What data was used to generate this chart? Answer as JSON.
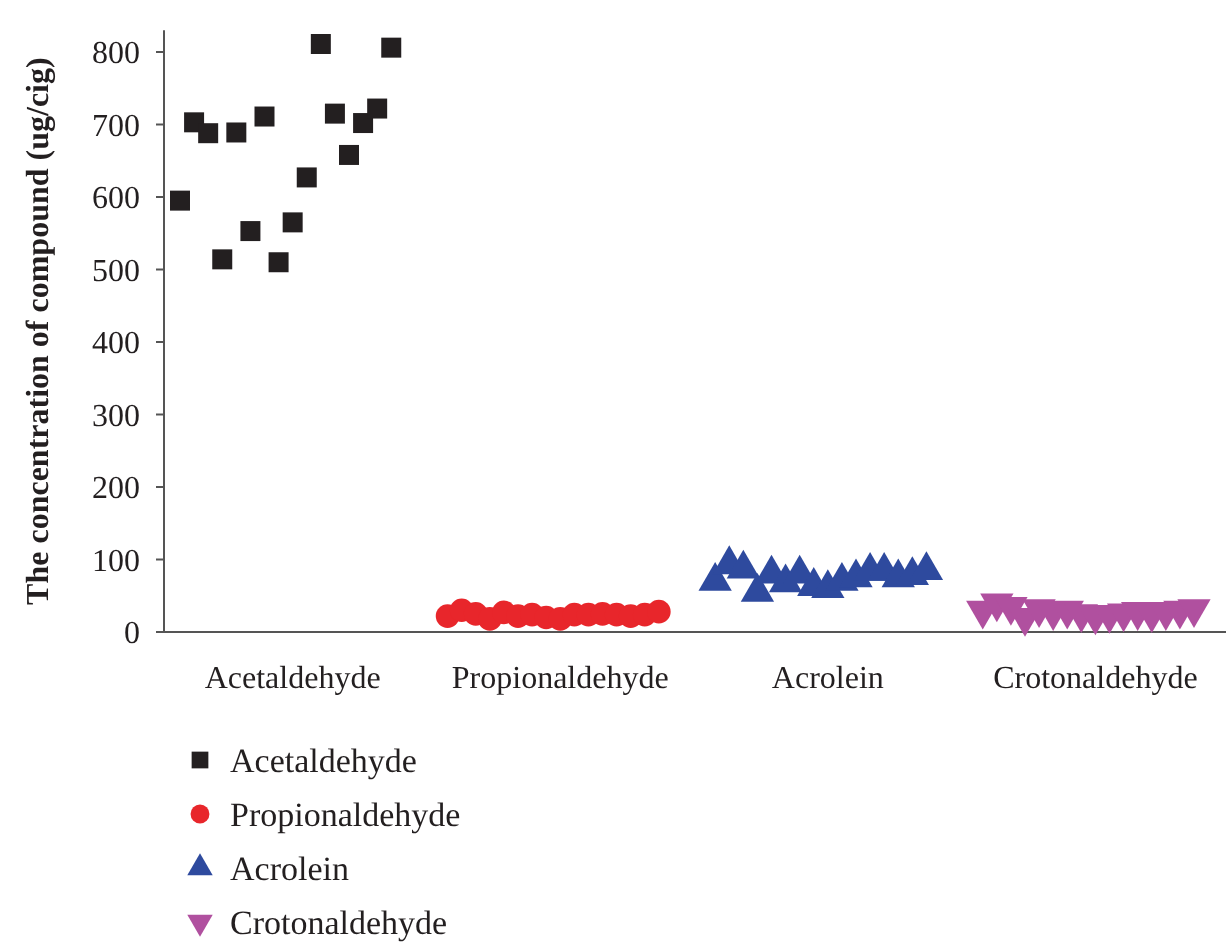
{
  "chart_data": {
    "type": "scatter",
    "ylabel": "The concentration of compound (ug/cig)",
    "categories": [
      null,
      null,
      null,
      null,
      null,
      null,
      null,
      null,
      "Acetaldehyde",
      null,
      null,
      null,
      null,
      null,
      null,
      null,
      null,
      null,
      null,
      null,
      null,
      null,
      null,
      null,
      null,
      null,
      null,
      "Propionaldehyde",
      null,
      null,
      null,
      null,
      null,
      null,
      null,
      null,
      null,
      null,
      null,
      null,
      null,
      null,
      null,
      null,
      null,
      null,
      "Acrolein",
      null,
      null,
      null,
      null,
      null,
      null,
      null,
      null,
      null,
      null,
      null,
      null,
      null,
      null,
      null,
      null,
      null,
      null,
      "Crotonaldehyde",
      null,
      null,
      null,
      null,
      null,
      null,
      null
    ],
    "ylim": [
      0,
      830
    ],
    "yticks": [
      0,
      100,
      200,
      300,
      400,
      500,
      600,
      700,
      800
    ],
    "grid": false,
    "legend": "bottom left",
    "series": [
      {
        "name": "Acetaldehyde",
        "color": "#231f20",
        "marker": "square",
        "values": [
          595,
          703,
          688,
          514,
          689,
          553,
          711,
          510,
          565,
          627,
          811,
          715,
          658,
          702,
          722,
          806,
          null,
          null,
          null,
          null,
          null,
          null,
          null,
          null,
          null,
          null,
          null,
          null,
          null,
          null,
          null,
          null,
          null,
          null,
          null,
          null,
          null,
          null,
          null,
          null,
          null,
          null,
          null,
          null,
          null,
          null,
          null,
          null,
          null,
          null,
          null,
          null,
          null,
          null,
          null,
          null,
          null,
          null,
          null,
          null,
          null,
          null,
          null,
          null,
          null,
          null,
          null,
          null,
          null,
          null,
          null,
          null,
          null
        ]
      },
      {
        "name": "Propionaldehyde",
        "color": "#e8262b",
        "marker": "circle",
        "values": [
          null,
          null,
          null,
          null,
          null,
          null,
          null,
          null,
          null,
          null,
          null,
          null,
          null,
          null,
          null,
          null,
          null,
          null,
          null,
          22,
          30,
          25,
          18,
          27,
          22,
          24,
          20,
          18,
          24,
          24,
          25,
          24,
          22,
          24,
          28,
          null,
          null,
          null,
          null,
          null,
          null,
          null,
          null,
          null,
          null,
          null,
          null,
          null,
          null,
          null,
          null,
          null,
          null,
          null,
          null,
          null,
          null,
          null,
          null,
          null,
          null,
          null,
          null,
          null,
          null,
          null,
          null,
          null,
          null,
          null,
          null,
          null,
          null
        ]
      },
      {
        "name": "Acrolein",
        "color": "#2e4a9e",
        "marker": "triangle",
        "values": [
          null,
          null,
          null,
          null,
          null,
          null,
          null,
          null,
          null,
          null,
          null,
          null,
          null,
          null,
          null,
          null,
          null,
          null,
          null,
          null,
          null,
          null,
          null,
          null,
          null,
          null,
          null,
          null,
          null,
          null,
          null,
          null,
          null,
          null,
          null,
          null,
          null,
          null,
          70,
          93,
          87,
          55,
          80,
          68,
          80,
          63,
          60,
          70,
          75,
          84,
          84,
          75,
          78,
          85,
          null,
          null,
          null,
          null,
          null,
          null,
          null,
          null,
          null,
          null,
          null,
          null,
          null,
          null,
          null,
          null,
          null,
          null,
          null
        ]
      },
      {
        "name": "Crotonaldehyde",
        "color": "#b0509f",
        "marker": "triangle-down",
        "values": [
          null,
          null,
          null,
          null,
          null,
          null,
          null,
          null,
          null,
          null,
          null,
          null,
          null,
          null,
          null,
          null,
          null,
          null,
          null,
          null,
          null,
          null,
          null,
          null,
          null,
          null,
          null,
          null,
          null,
          null,
          null,
          null,
          null,
          null,
          null,
          null,
          null,
          null,
          null,
          null,
          null,
          null,
          null,
          null,
          null,
          null,
          null,
          null,
          null,
          null,
          null,
          null,
          null,
          null,
          null,
          null,
          null,
          30,
          40,
          35,
          20,
          32,
          28,
          30,
          25,
          22,
          24,
          26,
          28,
          25,
          28,
          30,
          32
        ]
      }
    ]
  }
}
